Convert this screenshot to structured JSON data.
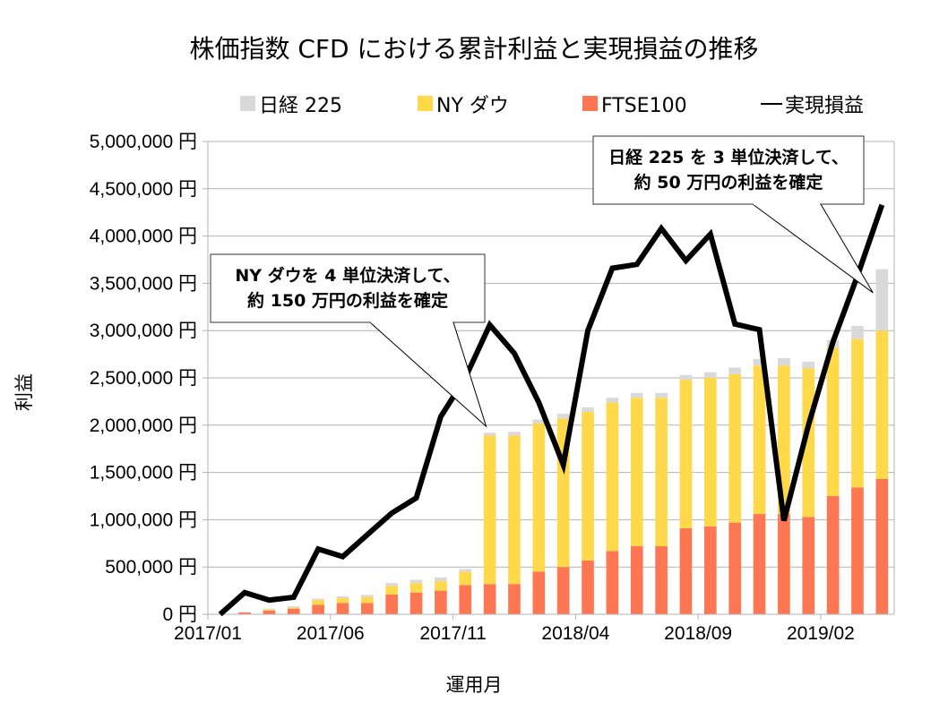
{
  "chart_data": {
    "type": "bar",
    "stacked": true,
    "title": "株価指数 CFD における累計利益と実現損益の推移",
    "xlabel": "運用月",
    "ylabel": "利益",
    "ylim": [
      0,
      5000000
    ],
    "y_ticks": [
      0,
      500000,
      1000000,
      1500000,
      2000000,
      2500000,
      3000000,
      3500000,
      4000000,
      4500000,
      5000000
    ],
    "y_tick_labels": [
      "0 円",
      "500,000 円",
      "1,000,000 円",
      "1,500,000 円",
      "2,000,000 円",
      "2,500,000 円",
      "3,000,000 円",
      "3,500,000 円",
      "4,000,000 円",
      "4,500,000 円",
      "5,000,000 円"
    ],
    "grid": true,
    "legend_position": "top",
    "categories": [
      "2017/01",
      "2017/02",
      "2017/03",
      "2017/04",
      "2017/05",
      "2017/06",
      "2017/07",
      "2017/08",
      "2017/09",
      "2017/10",
      "2017/11",
      "2017/12",
      "2018/01",
      "2018/02",
      "2018/03",
      "2018/04",
      "2018/05",
      "2018/06",
      "2018/07",
      "2018/08",
      "2018/09",
      "2018/10",
      "2018/11",
      "2018/12",
      "2019/01",
      "2019/02",
      "2019/03",
      "2019/04"
    ],
    "x_tick_labels": [
      "2017/01",
      "2017/06",
      "2017/11",
      "2018/04",
      "2018/09",
      "2019/02"
    ],
    "series": [
      {
        "name": "FTSE100",
        "kind": "bar",
        "color": "#FF7752",
        "values": [
          0,
          20000,
          40000,
          60000,
          100000,
          120000,
          120000,
          210000,
          230000,
          250000,
          310000,
          320000,
          320000,
          450000,
          500000,
          570000,
          670000,
          720000,
          720000,
          910000,
          930000,
          970000,
          1060000,
          1060000,
          1030000,
          1250000,
          1340000,
          1430000
        ]
      },
      {
        "name": "NY ダウ",
        "kind": "bar",
        "color": "#FFD94A",
        "values": [
          0,
          0,
          10000,
          10000,
          50000,
          50000,
          60000,
          90000,
          100000,
          100000,
          140000,
          1570000,
          1570000,
          1570000,
          1570000,
          1570000,
          1570000,
          1570000,
          1570000,
          1570000,
          1570000,
          1570000,
          1570000,
          1570000,
          1570000,
          1570000,
          1570000,
          1570000
        ]
      },
      {
        "name": "日経 225",
        "kind": "bar",
        "color": "#D9D9D9",
        "values": [
          0,
          5000,
          10000,
          15000,
          15000,
          20000,
          25000,
          30000,
          35000,
          40000,
          30000,
          30000,
          40000,
          40000,
          50000,
          50000,
          50000,
          50000,
          50000,
          50000,
          60000,
          70000,
          70000,
          80000,
          70000,
          80000,
          140000,
          650000
        ]
      },
      {
        "name": "実現損益",
        "kind": "line",
        "color": "#000000",
        "values": [
          0,
          230000,
          150000,
          180000,
          690000,
          610000,
          840000,
          1070000,
          1230000,
          2090000,
          2500000,
          3060000,
          2760000,
          2240000,
          1580000,
          3000000,
          3660000,
          3700000,
          4080000,
          3740000,
          4020000,
          3070000,
          3010000,
          990000,
          2000000,
          2880000,
          3580000,
          4330000
        ]
      }
    ],
    "legend": [
      {
        "label": "日経 225",
        "marker": "square",
        "color": "#D9D9D9"
      },
      {
        "label": "NY ダウ",
        "marker": "square",
        "color": "#FFD94A"
      },
      {
        "label": "FTSE100",
        "marker": "square",
        "color": "#FF7752"
      },
      {
        "label": "実現損益",
        "marker": "line",
        "color": "#000000"
      }
    ],
    "annotations": [
      {
        "lines": [
          "NY ダウを 4 単位決済して、",
          "約 150 万円の利益を確定"
        ],
        "points_to": "2017/12"
      },
      {
        "lines": [
          "日経 225 を 3 単位決済して、",
          "約 50 万円の利益を確定"
        ],
        "points_to": "2019/04"
      }
    ]
  }
}
